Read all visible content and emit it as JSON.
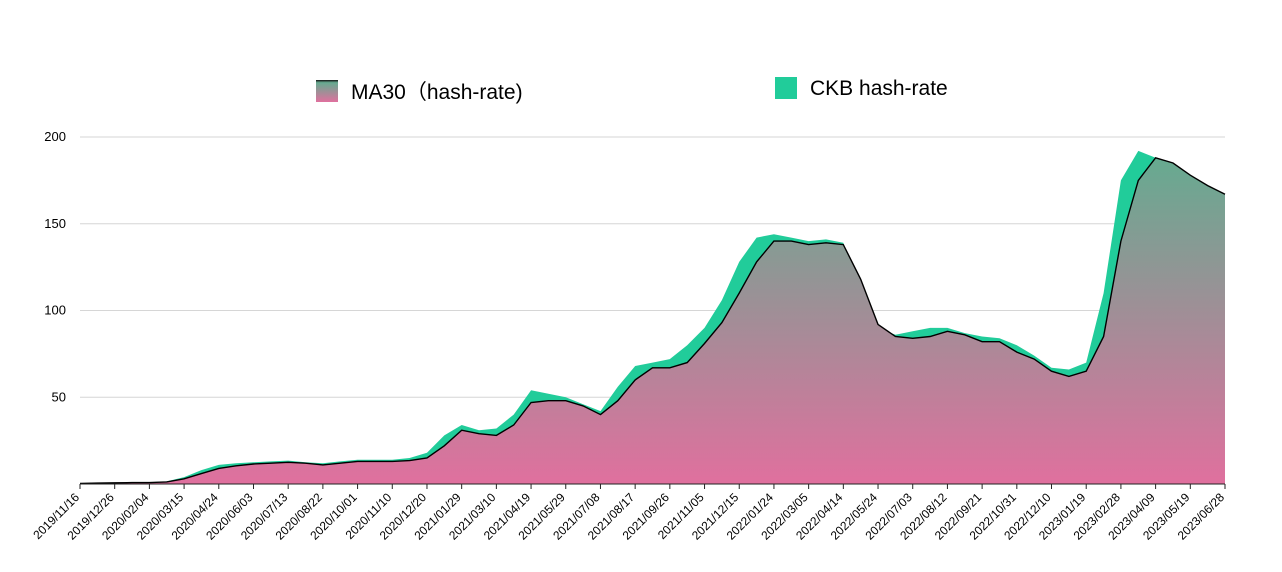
{
  "chart_data": {
    "type": "area",
    "title": "",
    "xlabel": "",
    "ylabel": "",
    "ylim": [
      0,
      200
    ],
    "yticks": [
      50,
      100,
      150,
      200
    ],
    "grid": true,
    "legend_position": "top",
    "categories": [
      "2019/11/16",
      "2019/12/26",
      "2020/02/04",
      "2020/03/15",
      "2020/04/24",
      "2020/06/03",
      "2020/07/13",
      "2020/08/22",
      "2020/10/01",
      "2020/11/10",
      "2020/12/20",
      "2021/01/29",
      "2021/03/10",
      "2021/04/19",
      "2021/05/29",
      "2021/07/08",
      "2021/08/17",
      "2021/09/26",
      "2021/11/05",
      "2021/12/15",
      "2022/01/24",
      "2022/03/05",
      "2022/04/14",
      "2022/05/24",
      "2022/07/03",
      "2022/08/12",
      "2022/09/21",
      "2022/10/31",
      "2022/12/10",
      "2023/01/19",
      "2023/02/28",
      "2023/04/09",
      "2023/05/19",
      "2023/06/28"
    ],
    "series": [
      {
        "name": "MA30（hash-rate)",
        "color_top": "#66aa90",
        "color_bottom": "#e0709e",
        "line_color": "#000000",
        "x": [
          "2019/11/16",
          "2019/12/06",
          "2019/12/26",
          "2020/01/15",
          "2020/02/04",
          "2020/02/24",
          "2020/03/15",
          "2020/04/04",
          "2020/04/24",
          "2020/05/14",
          "2020/06/03",
          "2020/06/23",
          "2020/07/13",
          "2020/08/02",
          "2020/08/22",
          "2020/09/11",
          "2020/10/01",
          "2020/10/21",
          "2020/11/10",
          "2020/11/30",
          "2020/12/20",
          "2021/01/09",
          "2021/01/29",
          "2021/02/18",
          "2021/03/10",
          "2021/03/30",
          "2021/04/19",
          "2021/05/09",
          "2021/05/29",
          "2021/06/18",
          "2021/07/08",
          "2021/07/28",
          "2021/08/17",
          "2021/09/06",
          "2021/09/26",
          "2021/10/16",
          "2021/11/05",
          "2021/11/25",
          "2021/12/15",
          "2022/01/04",
          "2022/01/24",
          "2022/02/13",
          "2022/03/05",
          "2022/03/25",
          "2022/04/14",
          "2022/05/04",
          "2022/05/24",
          "2022/06/13",
          "2022/07/03",
          "2022/07/23",
          "2022/08/12",
          "2022/09/01",
          "2022/09/21",
          "2022/10/11",
          "2022/10/31",
          "2022/11/20",
          "2022/12/10",
          "2022/12/30",
          "2023/01/19",
          "2023/02/08",
          "2023/02/28",
          "2023/03/20",
          "2023/04/09",
          "2023/04/29",
          "2023/05/19",
          "2023/06/08",
          "2023/06/28"
        ],
        "values": [
          0.3,
          0.5,
          0.7,
          0.8,
          0.8,
          1.2,
          3,
          6,
          9,
          10.5,
          11.5,
          12,
          12.5,
          12,
          11,
          12,
          13,
          13,
          13,
          13.5,
          15,
          22,
          31,
          29,
          28,
          34,
          47,
          48,
          48,
          45,
          40,
          48,
          60,
          67,
          67,
          70,
          81,
          93,
          110,
          128,
          140,
          140,
          138,
          139,
          138,
          118,
          92,
          85,
          84,
          85,
          88,
          86,
          82,
          82,
          76,
          72,
          65,
          62,
          65,
          85,
          140,
          175,
          188,
          185,
          178,
          172,
          167
        ]
      },
      {
        "name": "CKB hash-rate",
        "color": "#21cc9a",
        "x": [
          "2019/11/16",
          "2019/12/06",
          "2019/12/26",
          "2020/01/15",
          "2020/02/04",
          "2020/02/24",
          "2020/03/15",
          "2020/04/04",
          "2020/04/24",
          "2020/05/14",
          "2020/06/03",
          "2020/06/23",
          "2020/07/13",
          "2020/08/02",
          "2020/08/22",
          "2020/09/11",
          "2020/10/01",
          "2020/10/21",
          "2020/11/10",
          "2020/11/30",
          "2020/12/20",
          "2021/01/09",
          "2021/01/29",
          "2021/02/18",
          "2021/03/10",
          "2021/03/30",
          "2021/04/19",
          "2021/05/09",
          "2021/05/29",
          "2021/06/18",
          "2021/07/08",
          "2021/07/28",
          "2021/08/17",
          "2021/09/06",
          "2021/09/26",
          "2021/10/16",
          "2021/11/05",
          "2021/11/25",
          "2021/12/15",
          "2022/01/04",
          "2022/01/24",
          "2022/02/13",
          "2022/03/05",
          "2022/03/25",
          "2022/04/14",
          "2022/05/04",
          "2022/05/24",
          "2022/06/13",
          "2022/07/03",
          "2022/07/23",
          "2022/08/12",
          "2022/09/01",
          "2022/09/21",
          "2022/10/11",
          "2022/10/31",
          "2022/11/20",
          "2022/12/10",
          "2022/12/30",
          "2023/01/19",
          "2023/02/08",
          "2023/02/28",
          "2023/03/20",
          "2023/04/09",
          "2023/04/29",
          "2023/05/19",
          "2023/06/08",
          "2023/06/28"
        ],
        "values": [
          0.3,
          0.6,
          0.8,
          0.9,
          1,
          1.5,
          4,
          8,
          11,
          12,
          12.5,
          13,
          13.5,
          12.5,
          12,
          13,
          14,
          14,
          14,
          15,
          18,
          28,
          34,
          31,
          32,
          40,
          54,
          52,
          50,
          46,
          42,
          56,
          68,
          70,
          72,
          80,
          90,
          106,
          128,
          142,
          144,
          142,
          140,
          141,
          139,
          110,
          90,
          86,
          88,
          90,
          90,
          87,
          85,
          84,
          80,
          74,
          67,
          66,
          70,
          110,
          175,
          192,
          188,
          184,
          176,
          170,
          166
        ]
      }
    ]
  }
}
